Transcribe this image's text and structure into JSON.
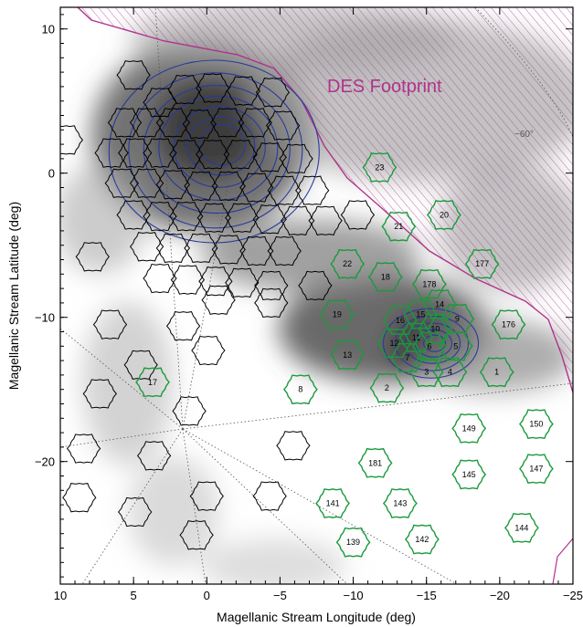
{
  "chart_data": {
    "type": "scatter",
    "xlabel": "Magellanic Stream Longitude (deg)",
    "ylabel": "Magellanic Stream Latitude (deg)",
    "xlim": [
      10,
      -25
    ],
    "ylim": [
      -28.5,
      11.5
    ],
    "x_ticks": [
      10,
      5,
      0,
      -5,
      -10,
      -15,
      -20,
      -25
    ],
    "x_tick_labels": [
      "10",
      "5",
      "0",
      "−5",
      "−10",
      "−15",
      "−20",
      "−25"
    ],
    "y_ticks": [
      10,
      0,
      -10,
      -20
    ],
    "y_tick_labels": [
      "10",
      "0",
      "−10",
      "−20"
    ],
    "footprint_label": "DES Footprint",
    "dec_label": "−60°",
    "colors": {
      "black_fields": "#000000",
      "green_fields": "#1a9a3c",
      "contours": "#2a3a9a",
      "footprint": "#b0338c",
      "density": "#7a7a7a"
    },
    "green_fields": [
      {
        "label": "23",
        "x": -11.8,
        "y": 0.4
      },
      {
        "label": "20",
        "x": -16.2,
        "y": -2.9
      },
      {
        "label": "21",
        "x": -13.1,
        "y": -3.7
      },
      {
        "label": "177",
        "x": -18.8,
        "y": -6.3
      },
      {
        "label": "22",
        "x": -9.6,
        "y": -6.3
      },
      {
        "label": "18",
        "x": -12.2,
        "y": -7.2
      },
      {
        "label": "178",
        "x": -15.2,
        "y": -7.7
      },
      {
        "label": "19",
        "x": -8.9,
        "y": -9.8
      },
      {
        "label": "15",
        "x": -14.6,
        "y": -9.8
      },
      {
        "label": "14",
        "x": -15.9,
        "y": -9.1
      },
      {
        "label": "16",
        "x": -13.2,
        "y": -10.2
      },
      {
        "label": "9",
        "x": -17.1,
        "y": -10.1
      },
      {
        "label": "176",
        "x": -20.6,
        "y": -10.5
      },
      {
        "label": "10",
        "x": -15.6,
        "y": -10.8
      },
      {
        "label": "11",
        "x": -14.3,
        "y": -11.4
      },
      {
        "label": "12",
        "x": -12.8,
        "y": -11.8
      },
      {
        "label": "6",
        "x": -15.2,
        "y": -12.0
      },
      {
        "label": "5",
        "x": -17.0,
        "y": -12.0
      },
      {
        "label": "13",
        "x": -9.6,
        "y": -12.6
      },
      {
        "label": "7",
        "x": -13.7,
        "y": -12.8
      },
      {
        "label": "3",
        "x": -15.0,
        "y": -13.8
      },
      {
        "label": "4",
        "x": -16.6,
        "y": -13.8
      },
      {
        "label": "1",
        "x": -19.8,
        "y": -13.8
      },
      {
        "label": "17",
        "x": 3.7,
        "y": -14.5
      },
      {
        "label": "8",
        "x": -6.4,
        "y": -15.0
      },
      {
        "label": "2",
        "x": -12.3,
        "y": -14.9
      },
      {
        "label": "150",
        "x": -22.5,
        "y": -17.4
      },
      {
        "label": "149",
        "x": -17.9,
        "y": -17.7
      },
      {
        "label": "181",
        "x": -11.5,
        "y": -20.1
      },
      {
        "label": "145",
        "x": -17.9,
        "y": -20.9
      },
      {
        "label": "147",
        "x": -22.5,
        "y": -20.5
      },
      {
        "label": "141",
        "x": -8.6,
        "y": -22.9
      },
      {
        "label": "143",
        "x": -13.2,
        "y": -22.9
      },
      {
        "label": "144",
        "x": -21.5,
        "y": -24.6
      },
      {
        "label": "139",
        "x": -10.0,
        "y": -25.6
      },
      {
        "label": "142",
        "x": -14.7,
        "y": -25.4
      }
    ],
    "black_fields": [
      {
        "x": 5.0,
        "y": 6.8
      },
      {
        "x": 3.2,
        "y": 4.9
      },
      {
        "x": 1.5,
        "y": 5.8
      },
      {
        "x": -0.4,
        "y": 5.9
      },
      {
        "x": -2.5,
        "y": 5.7
      },
      {
        "x": -4.5,
        "y": 5.6
      },
      {
        "x": 5.6,
        "y": 3.5
      },
      {
        "x": 4.1,
        "y": 3.5
      },
      {
        "x": 2.3,
        "y": 3.5
      },
      {
        "x": 0.5,
        "y": 3.4
      },
      {
        "x": -1.4,
        "y": 3.5
      },
      {
        "x": -3.3,
        "y": 3.5
      },
      {
        "x": -5.2,
        "y": 3.3
      },
      {
        "x": 9.6,
        "y": 2.3
      },
      {
        "x": 6.5,
        "y": 1.4
      },
      {
        "x": 4.9,
        "y": 1.4
      },
      {
        "x": 3.2,
        "y": 1.4
      },
      {
        "x": 1.4,
        "y": 1.3
      },
      {
        "x": -0.4,
        "y": 1.3
      },
      {
        "x": -2.3,
        "y": 1.3
      },
      {
        "x": -4.3,
        "y": 1.1
      },
      {
        "x": -6.1,
        "y": 1.0
      },
      {
        "x": 5.8,
        "y": -0.7
      },
      {
        "x": 4.1,
        "y": -0.7
      },
      {
        "x": 2.3,
        "y": -0.8
      },
      {
        "x": 0.4,
        "y": -0.9
      },
      {
        "x": -1.5,
        "y": -0.9
      },
      {
        "x": -3.4,
        "y": -1.0
      },
      {
        "x": -5.3,
        "y": -1.2
      },
      {
        "x": -7.2,
        "y": -1.2
      },
      {
        "x": 5.0,
        "y": -2.9
      },
      {
        "x": 3.2,
        "y": -3.0
      },
      {
        "x": 1.4,
        "y": -3.0
      },
      {
        "x": -0.5,
        "y": -3.1
      },
      {
        "x": -2.4,
        "y": -3.1
      },
      {
        "x": -4.3,
        "y": -3.2
      },
      {
        "x": -6.2,
        "y": -3.3
      },
      {
        "x": -8.1,
        "y": -3.3
      },
      {
        "x": -10.3,
        "y": -2.9
      },
      {
        "x": 4.1,
        "y": -5.1
      },
      {
        "x": 2.3,
        "y": -5.2
      },
      {
        "x": 0.4,
        "y": -5.2
      },
      {
        "x": -1.5,
        "y": -5.3
      },
      {
        "x": -3.4,
        "y": -5.4
      },
      {
        "x": -5.3,
        "y": -5.4
      },
      {
        "x": 7.8,
        "y": -5.8
      },
      {
        "x": 3.2,
        "y": -7.3
      },
      {
        "x": 1.3,
        "y": -7.4
      },
      {
        "x": -0.6,
        "y": -7.5
      },
      {
        "x": -2.4,
        "y": -7.6
      },
      {
        "x": -4.4,
        "y": -7.8
      },
      {
        "x": -7.4,
        "y": -7.8
      },
      {
        "x": -0.8,
        "y": -8.8
      },
      {
        "x": 6.6,
        "y": -10.5
      },
      {
        "x": 1.6,
        "y": -10.6
      },
      {
        "x": -4.4,
        "y": -9.0
      },
      {
        "x": 4.5,
        "y": -13.3
      },
      {
        "x": -0.1,
        "y": -12.3
      },
      {
        "x": 7.3,
        "y": -15.3
      },
      {
        "x": 1.2,
        "y": -16.5
      },
      {
        "x": 8.4,
        "y": -19.1
      },
      {
        "x": 3.6,
        "y": -19.6
      },
      {
        "x": -5.9,
        "y": -18.9
      },
      {
        "x": 8.7,
        "y": -22.5
      },
      {
        "x": 4.9,
        "y": -23.5
      },
      {
        "x": 0.0,
        "y": -22.4
      },
      {
        "x": -4.3,
        "y": -22.4
      },
      {
        "x": 0.7,
        "y": -25.1
      }
    ]
  }
}
